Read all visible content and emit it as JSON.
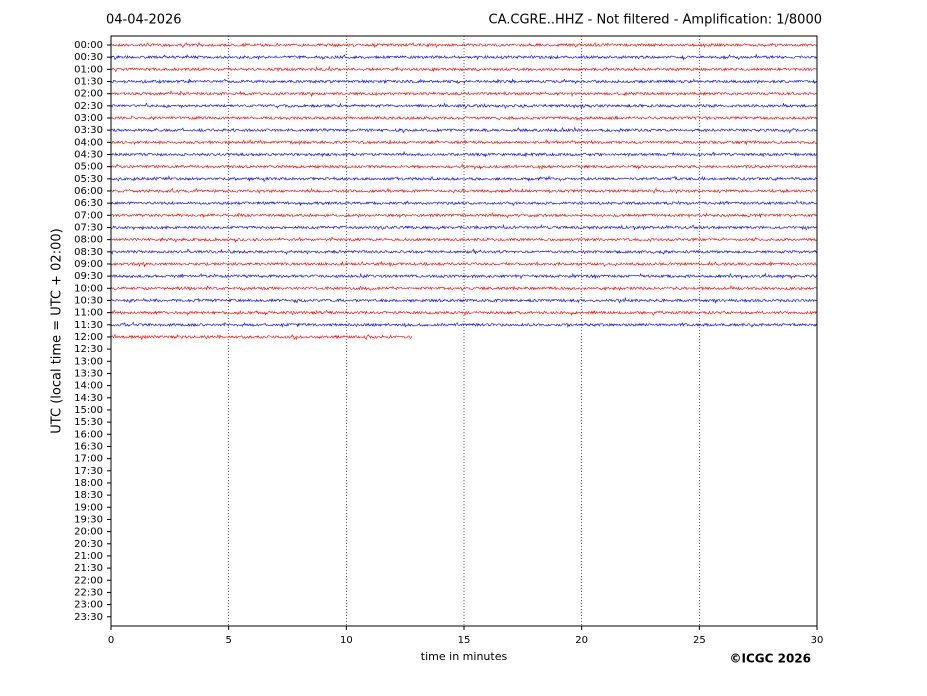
{
  "chart_data": {
    "type": "helicorder",
    "title_left": "04-04-2026",
    "title_right": "CA.CGRE..HHZ - Not filtered - Amplification: 1/8000",
    "xlabel": "time in minutes",
    "ylabel": "UTC (local time = UTC + 02:00)",
    "copyright": "©ICGC 2026",
    "xlim": [
      0,
      30
    ],
    "xticks": [
      0,
      5,
      10,
      15,
      20,
      25,
      30
    ],
    "grid": true,
    "categories": [
      "00:00",
      "00:30",
      "01:00",
      "01:30",
      "02:00",
      "02:30",
      "03:00",
      "03:30",
      "04:00",
      "04:30",
      "05:00",
      "05:30",
      "06:00",
      "06:30",
      "07:00",
      "07:30",
      "08:00",
      "08:30",
      "09:00",
      "09:30",
      "10:00",
      "10:30",
      "11:00",
      "11:30",
      "12:00",
      "12:30",
      "13:00",
      "13:30",
      "14:00",
      "14:30",
      "15:00",
      "15:30",
      "16:00",
      "16:30",
      "17:00",
      "17:30",
      "18:00",
      "18:30",
      "19:00",
      "19:30",
      "20:00",
      "20:30",
      "21:00",
      "21:30",
      "22:00",
      "22:30",
      "23:00",
      "23:30"
    ],
    "traces": [
      {
        "row": 0,
        "color": "#ff0000",
        "end": 30
      },
      {
        "row": 1,
        "color": "#0000ff",
        "end": 30
      },
      {
        "row": 2,
        "color": "#ff0000",
        "end": 30
      },
      {
        "row": 3,
        "color": "#0000ff",
        "end": 30
      },
      {
        "row": 4,
        "color": "#ff0000",
        "end": 30
      },
      {
        "row": 5,
        "color": "#0000ff",
        "end": 30
      },
      {
        "row": 6,
        "color": "#ff0000",
        "end": 30
      },
      {
        "row": 7,
        "color": "#0000ff",
        "end": 30
      },
      {
        "row": 8,
        "color": "#ff0000",
        "end": 30
      },
      {
        "row": 9,
        "color": "#0000ff",
        "end": 30
      },
      {
        "row": 10,
        "color": "#ff0000",
        "end": 30
      },
      {
        "row": 11,
        "color": "#0000ff",
        "end": 30
      },
      {
        "row": 12,
        "color": "#ff0000",
        "end": 30
      },
      {
        "row": 13,
        "color": "#0000ff",
        "end": 30
      },
      {
        "row": 14,
        "color": "#ff0000",
        "end": 30
      },
      {
        "row": 15,
        "color": "#0000ff",
        "end": 30
      },
      {
        "row": 16,
        "color": "#ff0000",
        "end": 30
      },
      {
        "row": 17,
        "color": "#0000ff",
        "end": 30
      },
      {
        "row": 18,
        "color": "#ff0000",
        "end": 30
      },
      {
        "row": 19,
        "color": "#0000ff",
        "end": 30
      },
      {
        "row": 20,
        "color": "#ff0000",
        "end": 30
      },
      {
        "row": 21,
        "color": "#0000ff",
        "end": 30
      },
      {
        "row": 22,
        "color": "#ff0000",
        "end": 30
      },
      {
        "row": 23,
        "color": "#0000ff",
        "end": 30
      },
      {
        "row": 24,
        "color": "#ff0000",
        "end": 12.8
      }
    ]
  }
}
